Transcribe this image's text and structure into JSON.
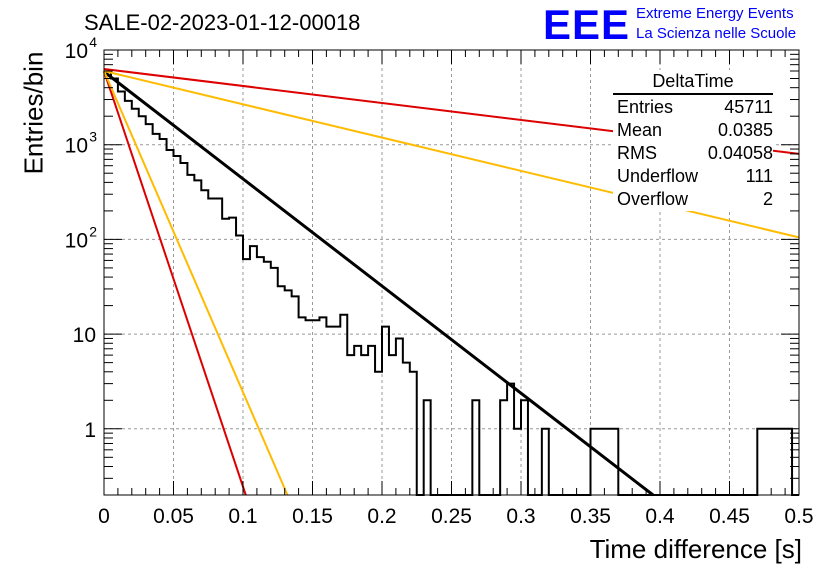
{
  "header": {
    "run_label": "SALE-02-2023-01-12-00018",
    "logo_text": "EEE",
    "org_line1": "Extreme Energy Events",
    "org_line2": "La Scienza nelle Scuole"
  },
  "stats_box": {
    "title": "DeltaTime",
    "rows": [
      {
        "label": "Entries",
        "value": "45711"
      },
      {
        "label": "Mean",
        "value": "0.0385"
      },
      {
        "label": "RMS",
        "value": "0.04058"
      },
      {
        "label": "Underflow",
        "value": "111"
      },
      {
        "label": "Overflow",
        "value": "2"
      }
    ]
  },
  "chart_data": {
    "type": "line",
    "xlabel": "Time difference [s]",
    "ylabel": "Entries/bin",
    "xlim": [
      0,
      0.5
    ],
    "ylim": [
      0.2,
      10000
    ],
    "yscale": "log",
    "grid": true,
    "x_ticks": [
      "0",
      "0.05",
      "0.1",
      "0.15",
      "0.2",
      "0.25",
      "0.3",
      "0.35",
      "0.4",
      "0.45",
      "0.5"
    ],
    "x_tick_values": [
      0,
      0.05,
      0.1,
      0.15,
      0.2,
      0.25,
      0.3,
      0.35,
      0.4,
      0.45,
      0.5
    ],
    "y_ticks": [
      {
        "value": 1,
        "label": "1",
        "sup": ""
      },
      {
        "value": 10,
        "label": "10",
        "sup": ""
      },
      {
        "value": 100,
        "label": "10",
        "sup": "2"
      },
      {
        "value": 1000,
        "label": "10",
        "sup": "3"
      },
      {
        "value": 10000,
        "label": "10",
        "sup": "4"
      }
    ],
    "histogram": {
      "bin_width": 0.005,
      "color": "#000000",
      "values": [
        5900,
        5000,
        3650,
        2900,
        2400,
        2000,
        1650,
        1300,
        1150,
        880,
        760,
        640,
        480,
        420,
        330,
        270,
        270,
        165,
        170,
        110,
        62,
        85,
        65,
        58,
        50,
        32,
        29,
        25,
        15,
        14,
        14,
        15,
        12,
        12,
        16,
        6.0,
        7.5,
        6.0,
        7.5,
        4.0,
        12,
        6.0,
        9.0,
        5.0,
        4.0,
        0,
        2.0,
        0,
        0,
        0,
        0,
        0,
        0,
        2.0,
        0,
        0,
        0,
        2.0,
        3.0,
        1.0,
        2.0,
        0,
        0,
        1.0,
        0,
        0,
        0,
        0,
        0,
        0,
        1.0,
        1.0,
        1.0,
        1.0,
        0,
        0,
        0,
        0,
        0,
        0,
        0,
        0,
        0,
        0,
        0,
        0,
        0,
        0,
        0,
        0,
        0,
        0,
        0,
        0,
        1.0,
        1.0,
        1.0,
        1.0,
        1.0,
        0
      ]
    },
    "series": [
      {
        "color": "#000000",
        "x": [
          0,
          0.395
        ],
        "y": [
          5900,
          0.2
        ]
      },
      {
        "color": "#dd0000",
        "x": [
          0,
          0.5
        ],
        "y": [
          6300,
          800
        ]
      },
      {
        "color": "#ffbb00",
        "x": [
          0,
          0.5
        ],
        "y": [
          6000,
          105
        ]
      },
      {
        "color": "#dd0000",
        "x": [
          0,
          0.102
        ],
        "y": [
          6000,
          0.2
        ]
      },
      {
        "color": "#ffbb00",
        "x": [
          0,
          0.132
        ],
        "y": [
          6000,
          0.2
        ]
      }
    ]
  }
}
